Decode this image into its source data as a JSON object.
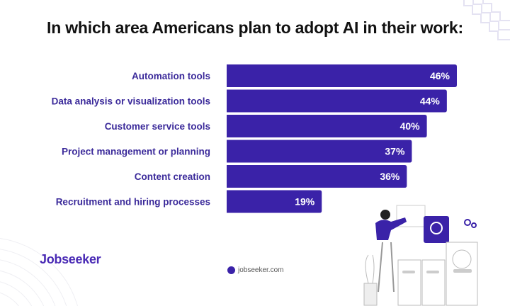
{
  "chart_data": {
    "type": "bar",
    "orientation": "horizontal",
    "title": "In which area Americans plan to adopt AI in their work:",
    "categories": [
      "Automation tools",
      "Data analysis or visualization tools",
      "Customer service tools",
      "Project management or planning",
      "Content creation",
      "Recruitment and hiring processes"
    ],
    "values": [
      46,
      44,
      40,
      37,
      36,
      19
    ],
    "value_labels": [
      "46%",
      "44%",
      "40%",
      "37%",
      "36%",
      "19%"
    ],
    "unit": "%",
    "xlim": [
      0,
      46
    ],
    "grid": false,
    "bar_color": "#3a22a8",
    "label_color": "#3b2a9a"
  },
  "branding": {
    "logo": "Jobseeker",
    "website": "jobseeker.com"
  }
}
